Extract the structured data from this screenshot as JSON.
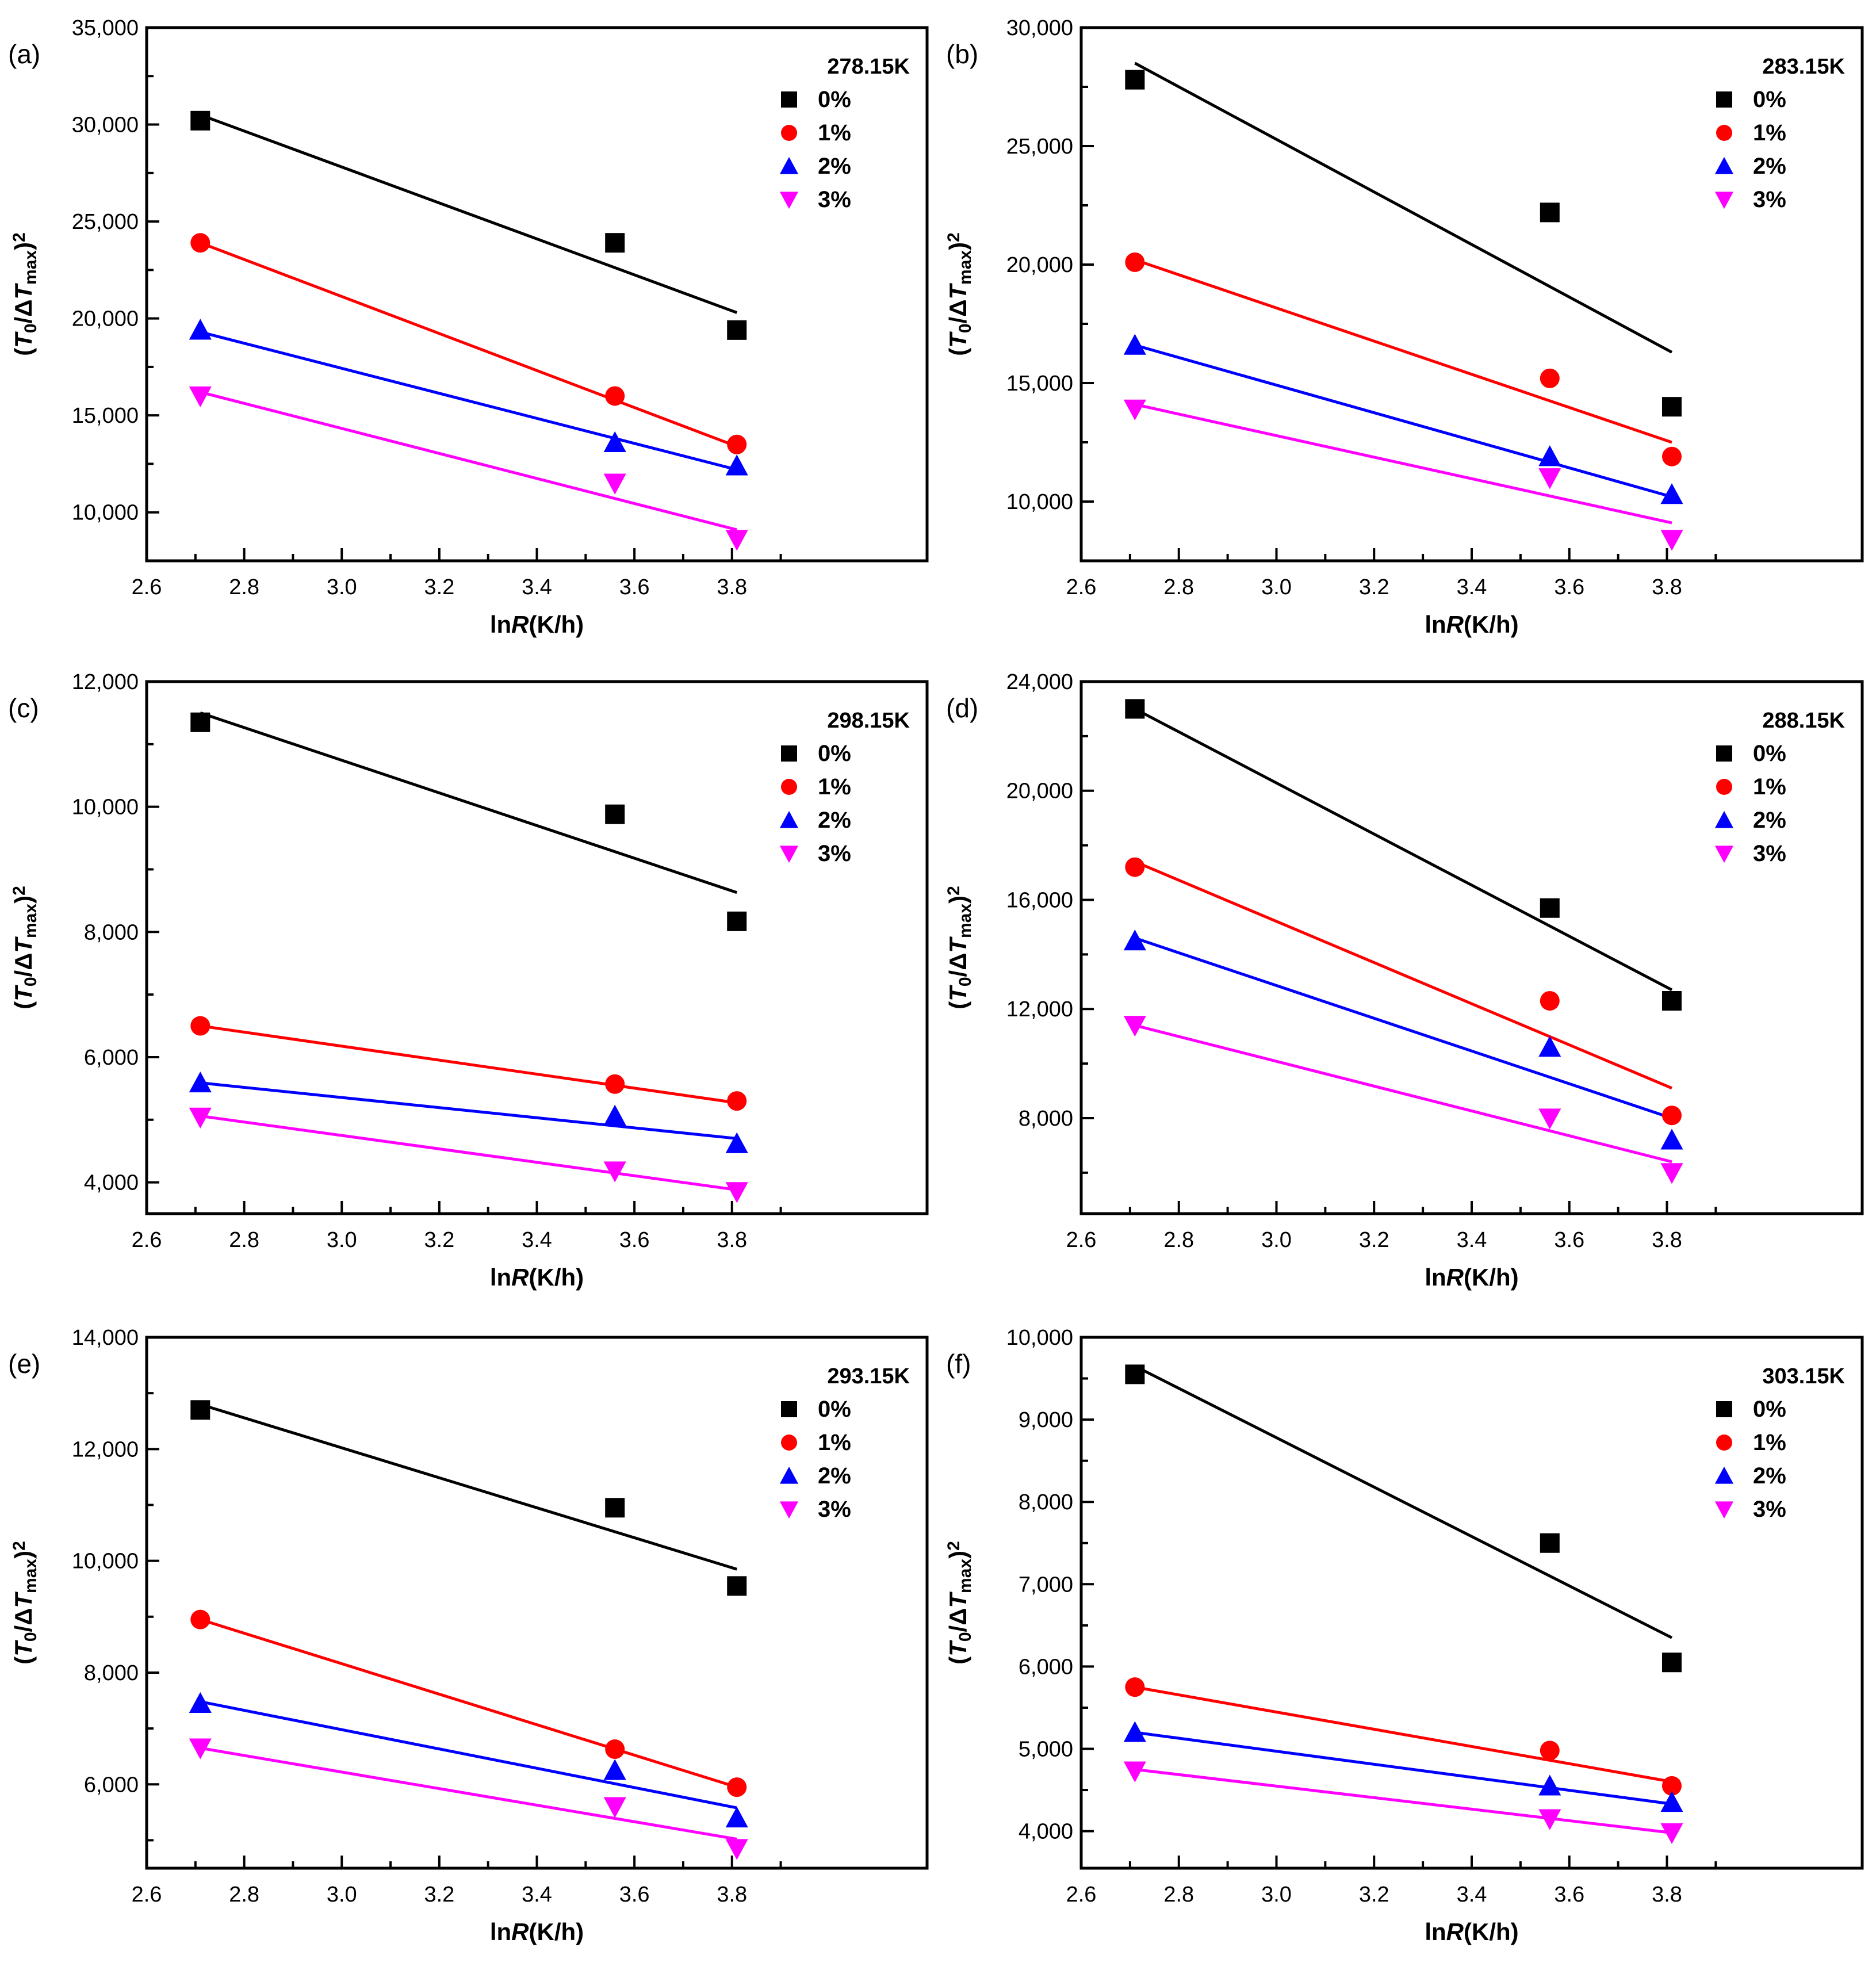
{
  "figure": {
    "legend_series": [
      "0%",
      "1%",
      "2%",
      "3%"
    ]
  },
  "chart_data": [
    {
      "panel": "(a)",
      "type": "scatter",
      "title": "278.15K",
      "xlabel": "lnR(K/h)",
      "ylabel": "(T0/ΔTmax)²",
      "xlim": [
        2.6,
        4.2
      ],
      "ylim": [
        7500,
        35000
      ],
      "xticks": [
        "2.6",
        "2.8",
        "3.0",
        "3.2",
        "3.4",
        "3.6",
        "3.8"
      ],
      "yticks": [
        "10,000",
        "15,000",
        "20,000",
        "25,000",
        "30,000",
        "35,000"
      ],
      "x": [
        2.71,
        3.56,
        3.81
      ],
      "series": [
        {
          "name": "0%",
          "color": "#000000",
          "marker": "square",
          "values": [
            30200,
            23900,
            19400
          ],
          "fit": [
            30500,
            20300
          ]
        },
        {
          "name": "1%",
          "color": "#ff0000",
          "marker": "circle",
          "values": [
            23900,
            16000,
            13500
          ],
          "fit": [
            23900,
            13400
          ]
        },
        {
          "name": "2%",
          "color": "#0000ff",
          "marker": "triangle-up",
          "values": [
            19400,
            13600,
            12400
          ],
          "fit": [
            19300,
            12200
          ]
        },
        {
          "name": "3%",
          "color": "#ff00ff",
          "marker": "triangle-down",
          "values": [
            16000,
            11500,
            8600
          ],
          "fit": [
            16200,
            9100
          ]
        }
      ]
    },
    {
      "panel": "(b)",
      "type": "scatter",
      "title": "283.15K",
      "xlabel": "lnR(K/h)",
      "ylabel": "(T0/ΔTmax)²",
      "xlim": [
        2.6,
        4.2
      ],
      "ylim": [
        7500,
        30000
      ],
      "xticks": [
        "2.6",
        "2.8",
        "3.0",
        "3.2",
        "3.4",
        "3.6",
        "3.8"
      ],
      "yticks": [
        "10,000",
        "15,000",
        "20,000",
        "25,000",
        "30,000"
      ],
      "x": [
        2.71,
        3.56,
        3.81
      ],
      "series": [
        {
          "name": "0%",
          "color": "#000000",
          "marker": "square",
          "values": [
            27800,
            22200,
            14000
          ],
          "fit": [
            28500,
            16300
          ]
        },
        {
          "name": "1%",
          "color": "#ff0000",
          "marker": "circle",
          "values": [
            20100,
            15200,
            11900
          ],
          "fit": [
            20200,
            12500
          ]
        },
        {
          "name": "2%",
          "color": "#0000ff",
          "marker": "triangle-up",
          "values": [
            16600,
            11900,
            10300
          ],
          "fit": [
            16600,
            10200
          ]
        },
        {
          "name": "3%",
          "color": "#ff00ff",
          "marker": "triangle-down",
          "values": [
            13900,
            11000,
            8400
          ],
          "fit": [
            14100,
            9100
          ]
        }
      ]
    },
    {
      "panel": "(c)",
      "type": "scatter",
      "title": "298.15K",
      "xlabel": "lnR(K/h)",
      "ylabel": "(T0/ΔTmax)²",
      "xlim": [
        2.6,
        4.2
      ],
      "ylim": [
        3500,
        12000
      ],
      "xticks": [
        "2.6",
        "2.8",
        "3.0",
        "3.2",
        "3.4",
        "3.6",
        "3.8"
      ],
      "yticks": [
        "4,000",
        "6,000",
        "8,000",
        "10,000",
        "12,000"
      ],
      "x": [
        2.71,
        3.56,
        3.81
      ],
      "series": [
        {
          "name": "0%",
          "color": "#000000",
          "marker": "square",
          "values": [
            11350,
            9880,
            8170
          ],
          "fit": [
            11500,
            8630
          ]
        },
        {
          "name": "1%",
          "color": "#ff0000",
          "marker": "circle",
          "values": [
            6500,
            5570,
            5300
          ],
          "fit": [
            6500,
            5270
          ]
        },
        {
          "name": "2%",
          "color": "#0000ff",
          "marker": "triangle-up",
          "values": [
            5590,
            5060,
            4620
          ],
          "fit": [
            5590,
            4700
          ]
        },
        {
          "name": "3%",
          "color": "#ff00ff",
          "marker": "triangle-down",
          "values": [
            5040,
            4180,
            3850
          ],
          "fit": [
            5060,
            3880
          ]
        }
      ]
    },
    {
      "panel": "(d)",
      "type": "scatter",
      "title": "288.15K",
      "xlabel": "lnR(K/h)",
      "ylabel": "(T0/ΔTmax)²",
      "xlim": [
        2.6,
        4.2
      ],
      "ylim": [
        4500,
        24000
      ],
      "xticks": [
        "2.6",
        "2.8",
        "3.0",
        "3.2",
        "3.4",
        "3.6",
        "3.8"
      ],
      "yticks": [
        "8,000",
        "12,000",
        "16,000",
        "20,000",
        "24,000"
      ],
      "x": [
        2.71,
        3.56,
        3.81
      ],
      "series": [
        {
          "name": "0%",
          "color": "#000000",
          "marker": "square",
          "values": [
            23000,
            15700,
            12300
          ],
          "fit": [
            23000,
            12700
          ]
        },
        {
          "name": "1%",
          "color": "#ff0000",
          "marker": "circle",
          "values": [
            17200,
            12300,
            8100
          ],
          "fit": [
            17400,
            9100
          ]
        },
        {
          "name": "2%",
          "color": "#0000ff",
          "marker": "triangle-up",
          "values": [
            14500,
            10600,
            7200
          ],
          "fit": [
            14600,
            8000
          ]
        },
        {
          "name": "3%",
          "color": "#ff00ff",
          "marker": "triangle-down",
          "values": [
            11400,
            8000,
            6000
          ],
          "fit": [
            11400,
            6400
          ]
        }
      ]
    },
    {
      "panel": "(e)",
      "type": "scatter",
      "title": "293.15K",
      "xlabel": "lnR(K/h)",
      "ylabel": "(T0/ΔTmax)²",
      "xlim": [
        2.6,
        4.2
      ],
      "ylim": [
        4500,
        14000
      ],
      "xticks": [
        "2.6",
        "2.8",
        "3.0",
        "3.2",
        "3.4",
        "3.6",
        "3.8"
      ],
      "yticks": [
        "6,000",
        "8,000",
        "10,000",
        "12,000",
        "14,000"
      ],
      "x": [
        2.71,
        3.56,
        3.81
      ],
      "series": [
        {
          "name": "0%",
          "color": "#000000",
          "marker": "square",
          "values": [
            12700,
            10950,
            9550
          ],
          "fit": [
            12800,
            9850
          ]
        },
        {
          "name": "1%",
          "color": "#ff0000",
          "marker": "circle",
          "values": [
            8950,
            6630,
            5950
          ],
          "fit": [
            8950,
            5950
          ]
        },
        {
          "name": "2%",
          "color": "#0000ff",
          "marker": "triangle-up",
          "values": [
            7450,
            6250,
            5400
          ],
          "fit": [
            7480,
            5580
          ]
        },
        {
          "name": "3%",
          "color": "#ff00ff",
          "marker": "triangle-down",
          "values": [
            6650,
            5600,
            4850
          ],
          "fit": [
            6650,
            5020
          ]
        }
      ]
    },
    {
      "panel": "(f)",
      "type": "scatter",
      "title": "303.15K",
      "xlabel": "lnR(K/h)",
      "ylabel": "(T0/ΔTmax)²",
      "xlim": [
        2.6,
        4.2
      ],
      "ylim": [
        3550,
        10000
      ],
      "xticks": [
        "2.6",
        "2.8",
        "3.0",
        "3.2",
        "3.4",
        "3.6",
        "3.8"
      ],
      "yticks": [
        "4,000",
        "5,000",
        "6,000",
        "7,000",
        "8,000",
        "9,000",
        "10,000"
      ],
      "x": [
        2.71,
        3.56,
        3.81
      ],
      "series": [
        {
          "name": "0%",
          "color": "#000000",
          "marker": "square",
          "values": [
            9550,
            7500,
            6050
          ],
          "fit": [
            9650,
            6350
          ]
        },
        {
          "name": "1%",
          "color": "#ff0000",
          "marker": "circle",
          "values": [
            5750,
            4980,
            4550
          ],
          "fit": [
            5750,
            4600
          ]
        },
        {
          "name": "2%",
          "color": "#0000ff",
          "marker": "triangle-up",
          "values": [
            5200,
            4550,
            4350
          ],
          "fit": [
            5200,
            4330
          ]
        },
        {
          "name": "3%",
          "color": "#ff00ff",
          "marker": "triangle-down",
          "values": [
            4730,
            4150,
            3980
          ],
          "fit": [
            4750,
            3980
          ]
        }
      ]
    }
  ]
}
